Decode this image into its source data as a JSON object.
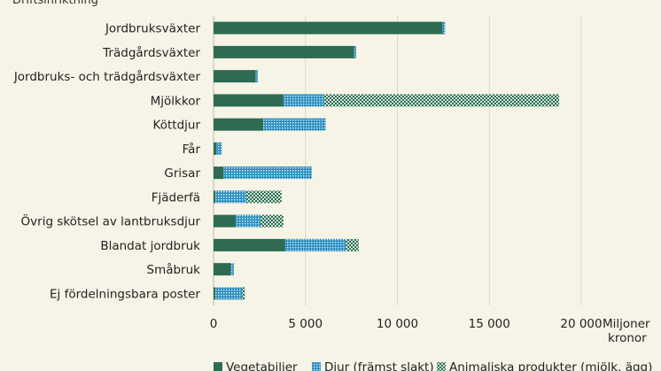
{
  "chart_data": {
    "type": "bar",
    "orientation": "horizontal",
    "stacked": true,
    "ylabel": "Driftsinriktning",
    "xlabel": "Miljoner kronor",
    "xlim": [
      0,
      20000
    ],
    "xticks": [
      0,
      5000,
      10000,
      15000,
      20000
    ],
    "xtick_labels": [
      "0",
      "5 000",
      "10 000",
      "15 000",
      "20 000"
    ],
    "grid": "vertical",
    "legend_position": "bottom",
    "categories": [
      "Jordbruksväxter",
      "Trädgårdsväxter",
      "Jordbruks- och trädgårdsväxter",
      "Mjölkkor",
      "Köttdjur",
      "Får",
      "Grisar",
      "Fjäderfä",
      "Övrig skötsel av lantbruksdjur",
      "Blandat jordbruk",
      "Småbruk",
      "Ej fördelningsbara poster"
    ],
    "series": [
      {
        "name": "Vegetabilier",
        "color": "#2e6b52",
        "pattern": "solid",
        "values": [
          12450,
          7650,
          2300,
          3800,
          2700,
          150,
          550,
          100,
          1200,
          3900,
          950,
          100
        ]
      },
      {
        "name": "Djur (främst slakt)",
        "color": "#2a8fbf",
        "pattern": "dots",
        "values": [
          150,
          100,
          100,
          2200,
          3400,
          300,
          4800,
          1700,
          1350,
          3300,
          150,
          1450
        ]
      },
      {
        "name": "Animaliska produkter (mjölk, ägg)",
        "color": "#2e6b52",
        "pattern": "hatch",
        "values": [
          0,
          0,
          0,
          12800,
          0,
          0,
          0,
          1900,
          1250,
          700,
          0,
          150
        ]
      }
    ]
  }
}
